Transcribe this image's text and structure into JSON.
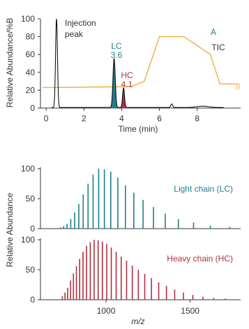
{
  "chart_data": [
    {
      "type": "line",
      "panel_label": "A",
      "panel_subtitle": "TIC",
      "ylabel": "Relative Abundance/%B",
      "xlabel": "Time (min)",
      "xlim": [
        -0.3,
        10.3
      ],
      "ylim": [
        0,
        100
      ],
      "xticks": [
        0,
        2,
        4,
        6,
        8
      ],
      "yticks": [
        0,
        20,
        40,
        60,
        80,
        100
      ],
      "colors": {
        "tic": "#111111",
        "lc": "#1e7f8c",
        "hc": "#b0303f",
        "gradient": "#f0a830"
      },
      "series": [
        {
          "kind": "gradient",
          "x": [
            -0.2,
            4.5,
            5.2,
            6.0,
            7.3,
            8.7,
            9.2,
            10.2
          ],
          "y": [
            23,
            24,
            30,
            80,
            80,
            60,
            27,
            27
          ]
        }
      ],
      "peaks": [
        {
          "time": 0.55,
          "height": 100,
          "width": 0.05
        },
        {
          "time": 3.6,
          "height": 55,
          "width": 0.06
        },
        {
          "time": 4.1,
          "height": 22,
          "width": 0.05
        },
        {
          "time": 6.65,
          "height": 4,
          "width": 0.05
        },
        {
          "time": 8.3,
          "height": 1.5,
          "width": 0.3
        }
      ],
      "annotations": {
        "injection_line1": "Injection",
        "injection_line2": "peak",
        "lc_label": "LC",
        "lc_time": "3.6",
        "hc_label": "HC",
        "hc_time": "4.1",
        "break_mark": "//"
      }
    },
    {
      "type": "bar",
      "name": "Light chain (LC)",
      "color": "#1e7f8c",
      "ylim": [
        0,
        100
      ],
      "yticks": [
        0,
        50,
        100
      ],
      "x": [
        730,
        748,
        768,
        790,
        813,
        838,
        864,
        893,
        923,
        956,
        990,
        1028,
        1070,
        1115,
        1165,
        1220,
        1282,
        1352,
        1430,
        1520,
        1620,
        1735
      ],
      "values": [
        2,
        4,
        8,
        16,
        27,
        41,
        57,
        75,
        90,
        100,
        99,
        95,
        85,
        72,
        60,
        48,
        36,
        25,
        16,
        10,
        5,
        3
      ]
    },
    {
      "type": "bar",
      "name": "Heavy chain (HC)",
      "color": "#b0303f",
      "ylim": [
        0,
        100
      ],
      "yticks": [
        0,
        50,
        100
      ],
      "xlabel": "m/z",
      "xlim": [
        610,
        1800
      ],
      "xticks": [
        1000,
        1500
      ],
      "x": [
        740,
        756,
        772,
        789,
        806,
        824,
        843,
        863,
        884,
        906,
        929,
        953,
        978,
        1004,
        1031,
        1060,
        1090,
        1122,
        1156,
        1192,
        1230,
        1270,
        1313,
        1359,
        1408,
        1460,
        1516,
        1576,
        1640,
        1710
      ],
      "values": [
        6,
        12,
        20,
        32,
        44,
        56,
        68,
        80,
        90,
        96,
        100,
        99,
        97,
        93,
        87,
        80,
        72,
        65,
        57,
        50,
        43,
        36,
        29,
        23,
        17,
        12,
        8,
        5,
        3,
        2
      ]
    }
  ],
  "shared_ylabel": "Relative Abundance"
}
